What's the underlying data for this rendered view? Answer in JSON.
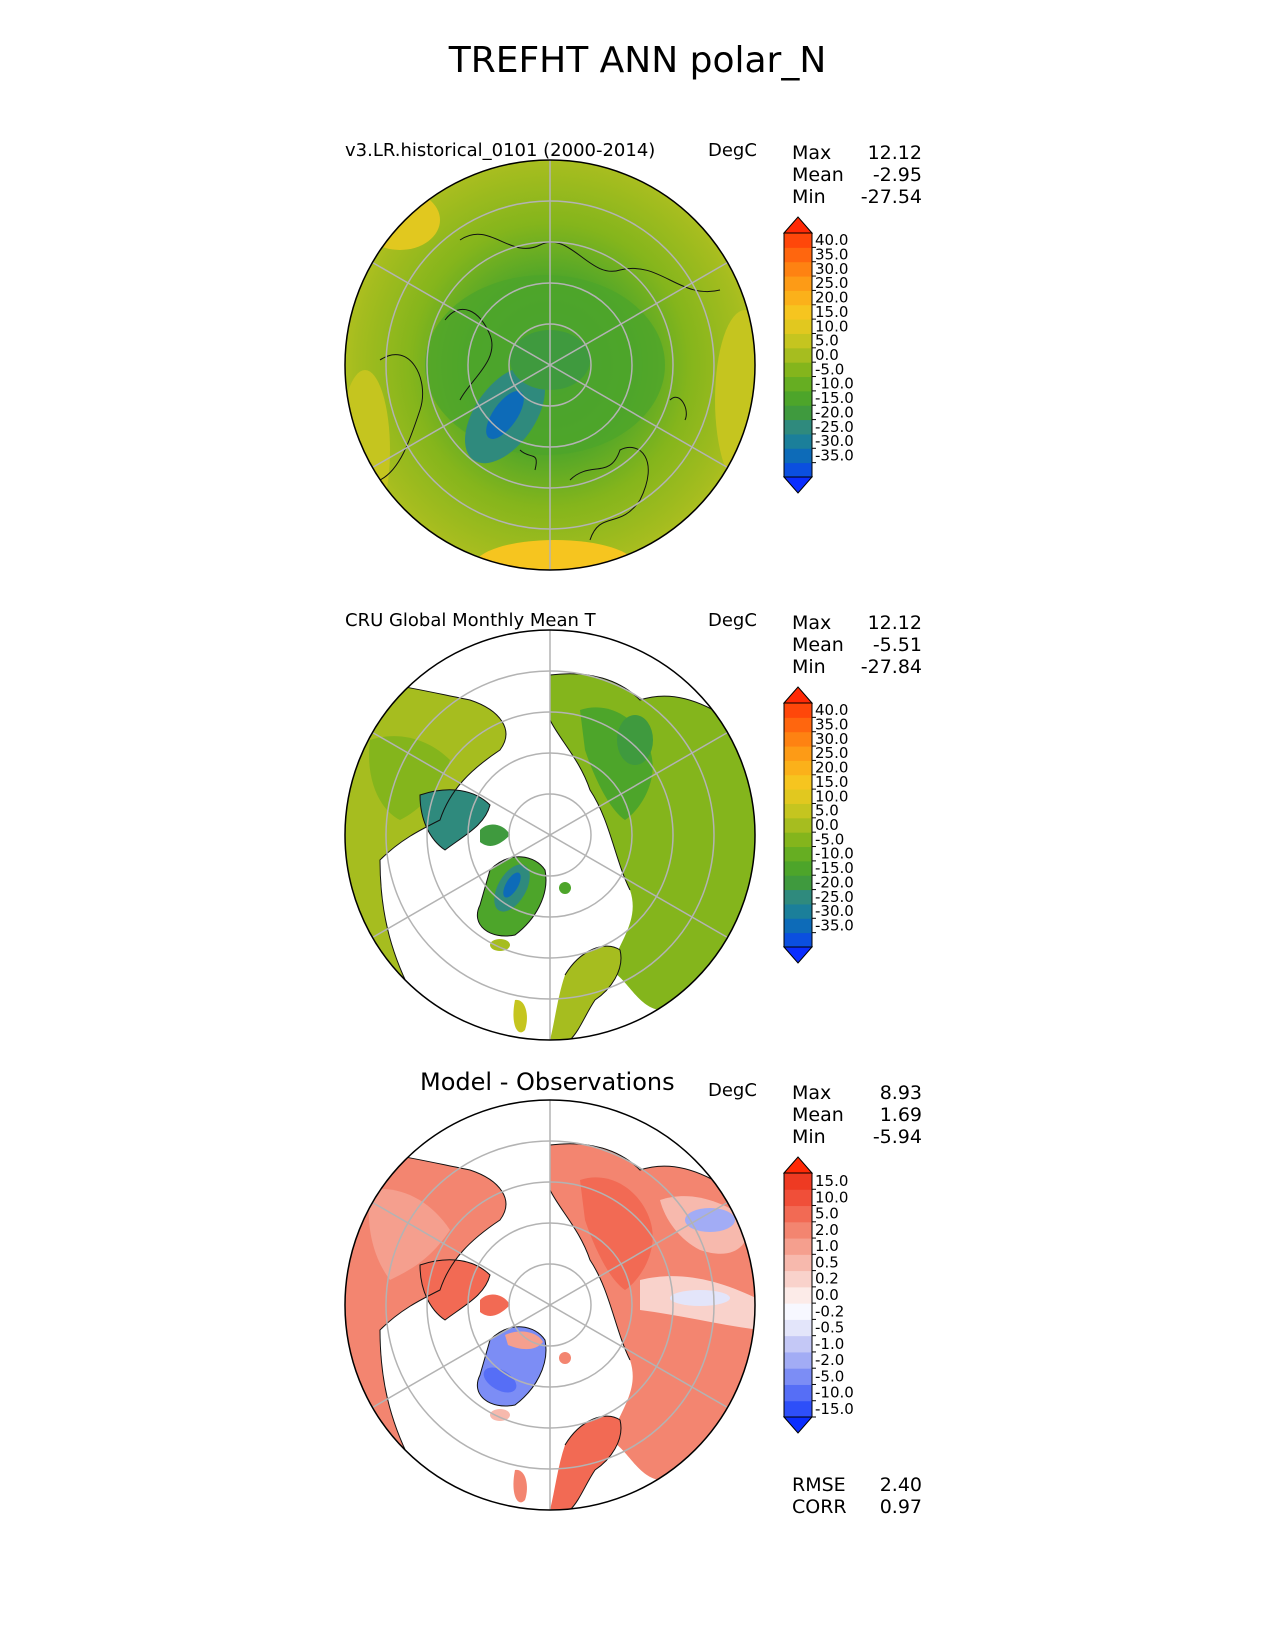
{
  "title": "TREFHT ANN polar_N",
  "panels": [
    {
      "id": "model",
      "title": "v3.LR.historical_0101 (2000-2014)",
      "units": "DegC",
      "stats": [
        {
          "label": "Max",
          "value": "12.12"
        },
        {
          "label": "Mean",
          "value": "-2.95"
        },
        {
          "label": "Min",
          "value": "-27.54"
        }
      ],
      "colorbar": {
        "ticks": [
          "40.0",
          "35.0",
          "30.0",
          "25.0",
          "20.0",
          "15.0",
          "10.0",
          "5.0",
          "0.0",
          "-5.0",
          "-10.0",
          "-15.0",
          "-20.0",
          "-25.0",
          "-30.0",
          "-35.0"
        ],
        "colors": [
          "#0a2dff",
          "#0b4fe0",
          "#0d6bb8",
          "#1b7f9a",
          "#2f8a7d",
          "#3f9a3e",
          "#4da52a",
          "#66ae22",
          "#84b51c",
          "#a6bd1f",
          "#c5c51f",
          "#e1c81f",
          "#f6c51f",
          "#fbb11a",
          "#fd9b16",
          "#fe8212",
          "#ff660e",
          "#ff470a",
          "#ff2a06"
        ]
      }
    },
    {
      "id": "obs",
      "title": "CRU Global Monthly Mean T",
      "units": "DegC",
      "stats": [
        {
          "label": "Max",
          "value": "12.12"
        },
        {
          "label": "Mean",
          "value": "-5.51"
        },
        {
          "label": "Min",
          "value": "-27.84"
        }
      ],
      "colorbar": {
        "ticks": [
          "40.0",
          "35.0",
          "30.0",
          "25.0",
          "20.0",
          "15.0",
          "10.0",
          "5.0",
          "0.0",
          "-5.0",
          "-10.0",
          "-15.0",
          "-20.0",
          "-25.0",
          "-30.0",
          "-35.0"
        ],
        "colors": [
          "#0a2dff",
          "#0b4fe0",
          "#0d6bb8",
          "#1b7f9a",
          "#2f8a7d",
          "#3f9a3e",
          "#4da52a",
          "#66ae22",
          "#84b51c",
          "#a6bd1f",
          "#c5c51f",
          "#e1c81f",
          "#f6c51f",
          "#fbb11a",
          "#fd9b16",
          "#fe8212",
          "#ff660e",
          "#ff470a",
          "#ff2a06"
        ]
      }
    },
    {
      "id": "diff",
      "title": "Model - Observations",
      "units": "DegC",
      "stats": [
        {
          "label": "Max",
          "value": "8.93"
        },
        {
          "label": "Mean",
          "value": "1.69"
        },
        {
          "label": "Min",
          "value": "-5.94"
        }
      ],
      "colorbar": {
        "ticks": [
          "15.0",
          "10.0",
          "5.0",
          "2.0",
          "1.0",
          "0.5",
          "0.2",
          "0.0",
          "-0.2",
          "-0.5",
          "-1.0",
          "-2.0",
          "-5.0",
          "-10.0",
          "-15.0"
        ],
        "colors": [
          "#0a2dff",
          "#2e4ff9",
          "#566ef6",
          "#7c8df5",
          "#a2acf5",
          "#c4c8f6",
          "#e3e5fa",
          "#f7f8ff",
          "#fcebe8",
          "#f9d2cb",
          "#f7b9ad",
          "#f59f8e",
          "#f38570",
          "#f26a54",
          "#f04f39",
          "#ee3a22",
          "#ff2a06"
        ]
      },
      "metrics": [
        {
          "label": "RMSE",
          "value": "2.40"
        },
        {
          "label": "CORR",
          "value": "0.97"
        }
      ]
    }
  ]
}
